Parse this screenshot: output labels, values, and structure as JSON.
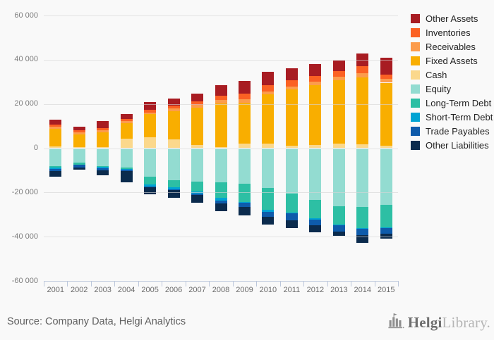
{
  "page": {
    "background": "#f9f9f9"
  },
  "footer": {
    "source_text": "Source: Company Data, Helgi Analytics",
    "logo_text_bold": "Helgi",
    "logo_text_light": "Library."
  },
  "chart_data": {
    "type": "bar",
    "stacked": true,
    "title": "",
    "xlabel": "",
    "ylabel": "",
    "grid": "horizontal",
    "legend_position": "right",
    "categories": [
      "2001",
      "2002",
      "2003",
      "2004",
      "2005",
      "2006",
      "2007",
      "2008",
      "2009",
      "2010",
      "2011",
      "2012",
      "2013",
      "2014",
      "2015"
    ],
    "y_axis": {
      "min": -60000,
      "max": 60000,
      "tick_step": 20000,
      "tick_labels": [
        "60 000",
        "40 000",
        "20 000",
        "0",
        "-20 000",
        "-40 000",
        "-60 000"
      ]
    },
    "stacking_note": "assets stack upward from zero (Cash nearest zero, Other Assets on top); liabilities stack downward from zero (Equity nearest zero, Other Liabilities at bottom)",
    "series": [
      {
        "name": "Other Assets",
        "color": "#a81c22",
        "stack": "assets",
        "values": [
          2300,
          1700,
          2900,
          2200,
          3300,
          3100,
          3500,
          4800,
          5500,
          6000,
          5400,
          5400,
          4900,
          5500,
          7500
        ]
      },
      {
        "name": "Inventories",
        "color": "#fb6123",
        "stack": "assets",
        "values": [
          900,
          1000,
          1000,
          900,
          1300,
          1300,
          1500,
          1900,
          2800,
          2800,
          2800,
          2300,
          2300,
          3300,
          2200
        ]
      },
      {
        "name": "Receivables",
        "color": "#fc9c4c",
        "stack": "assets",
        "values": [
          800,
          900,
          900,
          1000,
          800,
          1200,
          1200,
          1800,
          1600,
          1400,
          1400,
          1700,
          1600,
          1800,
          1600
        ]
      },
      {
        "name": "Fixed Assets",
        "color": "#f9ae00",
        "stack": "assets",
        "values": [
          8200,
          5600,
          6700,
          7200,
          10500,
          12900,
          17000,
          19500,
          18200,
          22300,
          25400,
          27100,
          28800,
          30400,
          28400
        ]
      },
      {
        "name": "Cash",
        "color": "#fbd88c",
        "stack": "assets",
        "values": [
          700,
          600,
          600,
          4200,
          4800,
          3900,
          1400,
          600,
          2200,
          2000,
          1200,
          1400,
          2000,
          1700,
          1200
        ]
      },
      {
        "name": "Equity",
        "color": "#93dcd1",
        "stack": "liabilities",
        "values": [
          8100,
          6400,
          8000,
          8900,
          12800,
          14600,
          15100,
          15400,
          16200,
          18000,
          20600,
          23400,
          26400,
          26700,
          25600
        ]
      },
      {
        "name": "Long-Term Debt",
        "color": "#2dbfa4",
        "stack": "liabilities",
        "values": [
          600,
          1000,
          500,
          600,
          3700,
          3200,
          4500,
          7000,
          8100,
          10000,
          8500,
          8400,
          8200,
          9300,
          10200
        ]
      },
      {
        "name": "Short-Term Debt",
        "color": "#00a3d3",
        "stack": "liabilities",
        "values": [
          600,
          200,
          600,
          300,
          700,
          700,
          1000,
          1300,
          500,
          700,
          500,
          500,
          400,
          400,
          400
        ]
      },
      {
        "name": "Trade Payables",
        "color": "#0e5bab",
        "stack": "liabilities",
        "values": [
          900,
          1100,
          800,
          400,
          600,
          500,
          600,
          1400,
          1900,
          2400,
          2900,
          2600,
          2700,
          3000,
          2400
        ]
      },
      {
        "name": "Other Liabilities",
        "color": "#0b2b4d",
        "stack": "liabilities",
        "values": [
          2700,
          1100,
          2200,
          5300,
          2900,
          3400,
          3400,
          3500,
          3600,
          3400,
          3700,
          3000,
          1900,
          3300,
          2300
        ]
      }
    ]
  }
}
